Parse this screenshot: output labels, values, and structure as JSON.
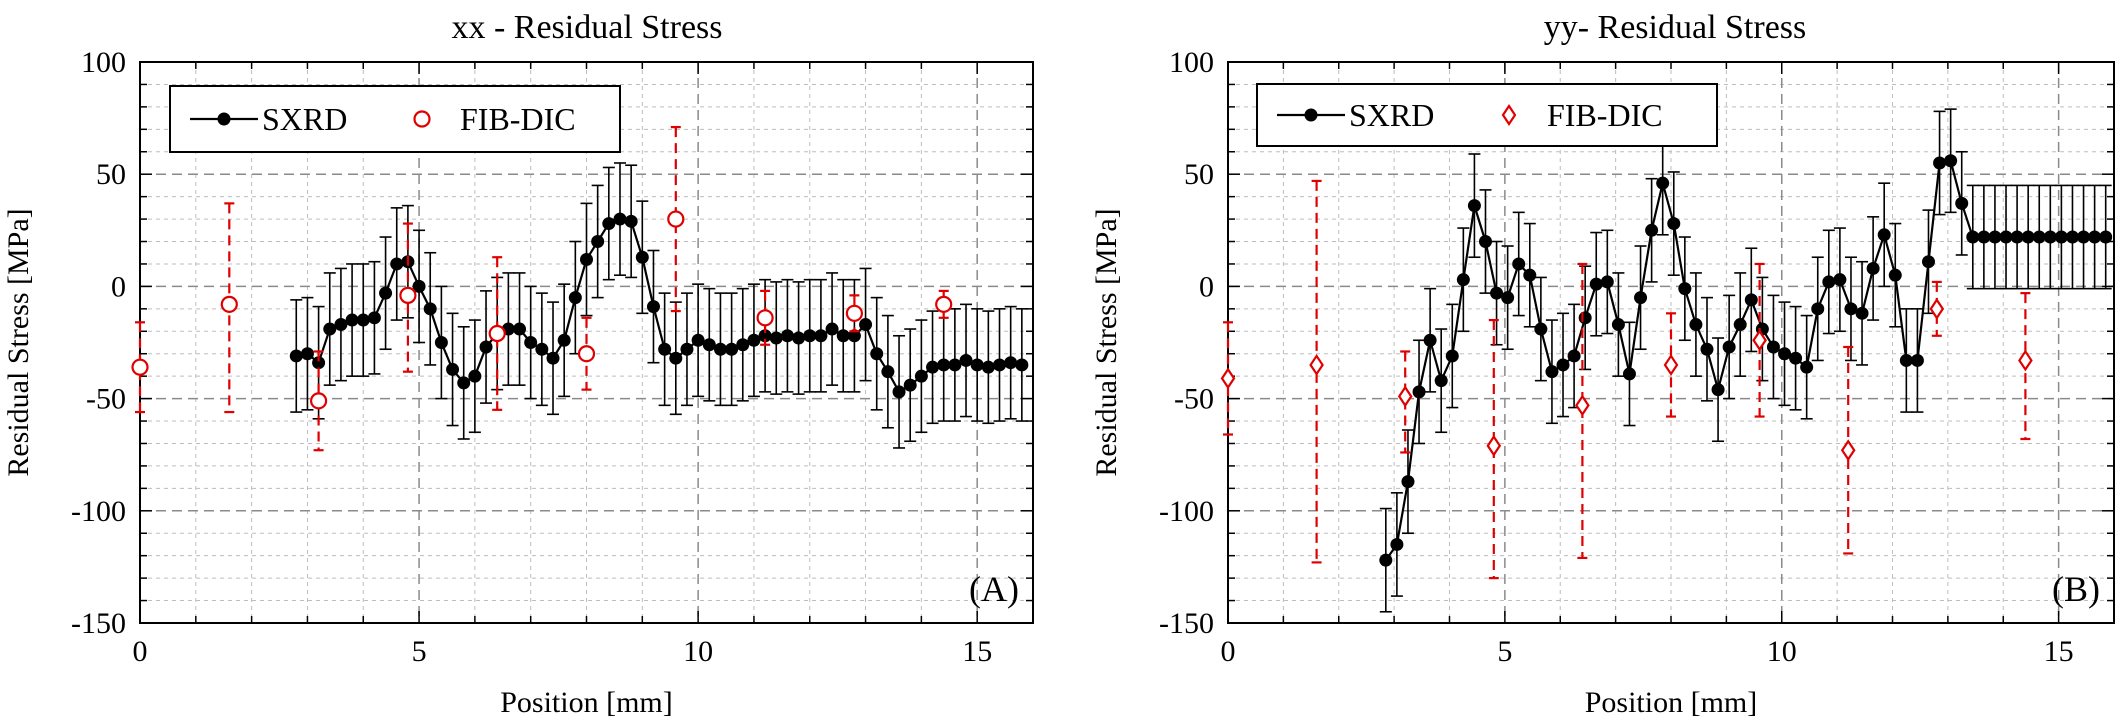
{
  "figure": {
    "panels": [
      "A",
      "B"
    ]
  },
  "chart_data": [
    {
      "type": "line",
      "panel_tag": "(A)",
      "title": "xx - Residual Stress",
      "xlabel": "Position [mm]",
      "ylabel": "Residual Stress [MPa]",
      "xlim": [
        0,
        16
      ],
      "ylim": [
        -150,
        100
      ],
      "xticks": [
        0,
        5,
        10,
        15
      ],
      "yticks": [
        -150,
        -100,
        -50,
        0,
        50,
        100
      ],
      "grid": true,
      "legend": {
        "placement": "top-left",
        "entries": [
          "SXRD",
          "FIB-DIC"
        ]
      },
      "colors": {
        "SXRD": "#000000",
        "FIB-DIC": "#e00000"
      },
      "series": [
        {
          "name": "SXRD",
          "style": "line-filled-circle",
          "error": 25,
          "x": [
            2.8,
            3.0,
            3.2,
            3.4,
            3.6,
            3.8,
            4.0,
            4.2,
            4.4,
            4.6,
            4.8,
            5.0,
            5.2,
            5.4,
            5.6,
            5.8,
            6.0,
            6.2,
            6.4,
            6.6,
            6.8,
            7.0,
            7.2,
            7.4,
            7.6,
            7.8,
            8.0,
            8.2,
            8.4,
            8.6,
            8.8,
            9.0,
            9.2,
            9.4,
            9.6,
            9.8,
            10.0,
            10.2,
            10.4,
            10.6,
            10.8,
            11.0,
            11.2,
            11.4,
            11.6,
            11.8,
            12.0,
            12.2,
            12.4,
            12.6,
            12.8,
            13.0,
            13.2,
            13.4,
            13.6,
            13.8,
            14.0,
            14.2,
            14.4,
            14.6,
            14.8,
            15.0,
            15.2,
            15.4,
            15.6,
            15.8
          ],
          "y": [
            -31,
            -30,
            -34,
            -19,
            -17,
            -15,
            -15,
            -14,
            -3,
            10,
            11,
            0,
            -10,
            -25,
            -37,
            -43,
            -40,
            -27,
            -21,
            -19,
            -19,
            -25,
            -28,
            -32,
            -24,
            -5,
            12,
            20,
            28,
            30,
            29,
            13,
            -9,
            -28,
            -32,
            -28,
            -24,
            -26,
            -28,
            -28,
            -26,
            -24,
            -22,
            -23,
            -22,
            -23,
            -22,
            -22,
            -19,
            -22,
            -22,
            -17,
            -30,
            -38,
            -47,
            -44,
            -40,
            -36,
            -35,
            -35,
            -33,
            -35,
            -36,
            -35,
            -34,
            -35
          ]
        },
        {
          "name": "FIB-DIC",
          "style": "open-circle-dashed-errorbar",
          "x": [
            0.0,
            1.6,
            3.2,
            4.8,
            6.4,
            8.0,
            9.6,
            11.2,
            12.8,
            14.4
          ],
          "y": [
            -36,
            -8,
            -51,
            -4,
            -21,
            -30,
            30,
            -14,
            -12,
            -8
          ],
          "err_low": [
            20,
            48,
            22,
            34,
            34,
            16,
            41,
            12,
            8,
            6
          ],
          "err_high": [
            20,
            45,
            22,
            32,
            34,
            16,
            41,
            12,
            8,
            6
          ]
        }
      ]
    },
    {
      "type": "line",
      "panel_tag": "(B)",
      "title": "yy- Residual Stress",
      "xlabel": "Position [mm]",
      "ylabel": "Residual Stress [MPa]",
      "xlim": [
        0,
        16
      ],
      "ylim": [
        -150,
        100
      ],
      "xticks": [
        0,
        5,
        10,
        15
      ],
      "yticks": [
        -150,
        -100,
        -50,
        0,
        50,
        100
      ],
      "grid": true,
      "legend": {
        "placement": "top-left",
        "entries": [
          "SXRD",
          "FIB-DIC"
        ]
      },
      "colors": {
        "SXRD": "#000000",
        "FIB-DIC": "#e00000"
      },
      "series": [
        {
          "name": "SXRD",
          "style": "line-filled-circle",
          "error": 23,
          "x": [
            2.85,
            3.05,
            3.25,
            3.45,
            3.65,
            3.85,
            4.05,
            4.25,
            4.45,
            4.65,
            4.85,
            5.05,
            5.25,
            5.45,
            5.65,
            5.85,
            6.05,
            6.25,
            6.45,
            6.65,
            6.85,
            7.05,
            7.25,
            7.45,
            7.65,
            7.85,
            8.05,
            8.25,
            8.45,
            8.65,
            8.85,
            9.05,
            9.25,
            9.45,
            9.65,
            9.85,
            10.05,
            10.25,
            10.45,
            10.65,
            10.85,
            11.05,
            11.25,
            11.45,
            11.65,
            11.85,
            12.05,
            12.25,
            12.45,
            12.65,
            12.85,
            13.05,
            13.25,
            13.45,
            13.65,
            13.85,
            14.05,
            14.25,
            14.45,
            14.65,
            14.85,
            15.05,
            15.25,
            15.45,
            15.65,
            15.85
          ],
          "y": [
            -122,
            -115,
            -87,
            -47,
            -24,
            -42,
            -31,
            3,
            36,
            20,
            -3,
            -5,
            10,
            5,
            -19,
            -38,
            -35,
            -31,
            -14,
            1,
            2,
            -17,
            -39,
            -5,
            25,
            46,
            28,
            -1,
            -17,
            -28,
            -46,
            -27,
            -17,
            -6,
            -19,
            -27,
            -30,
            -32,
            -36,
            -10,
            2,
            3,
            -10,
            -12,
            8,
            23,
            5,
            -33,
            -33,
            11,
            55,
            56,
            37,
            22,
            22,
            22,
            22,
            22,
            22,
            22,
            22,
            22,
            22,
            22,
            22,
            22
          ]
        },
        {
          "name": "FIB-DIC",
          "style": "open-diamond-dashed-errorbar",
          "x": [
            0.0,
            1.6,
            3.2,
            4.8,
            6.4,
            8.0,
            9.6,
            11.2,
            12.8,
            14.4
          ],
          "y": [
            -41,
            -35,
            -49,
            -71,
            -53,
            -35,
            -24,
            -73,
            -10,
            -33
          ],
          "err_low": [
            25,
            88,
            25,
            59,
            68,
            23,
            34,
            46,
            12,
            35
          ],
          "err_high": [
            25,
            82,
            20,
            56,
            63,
            23,
            34,
            46,
            12,
            30
          ]
        }
      ]
    }
  ]
}
